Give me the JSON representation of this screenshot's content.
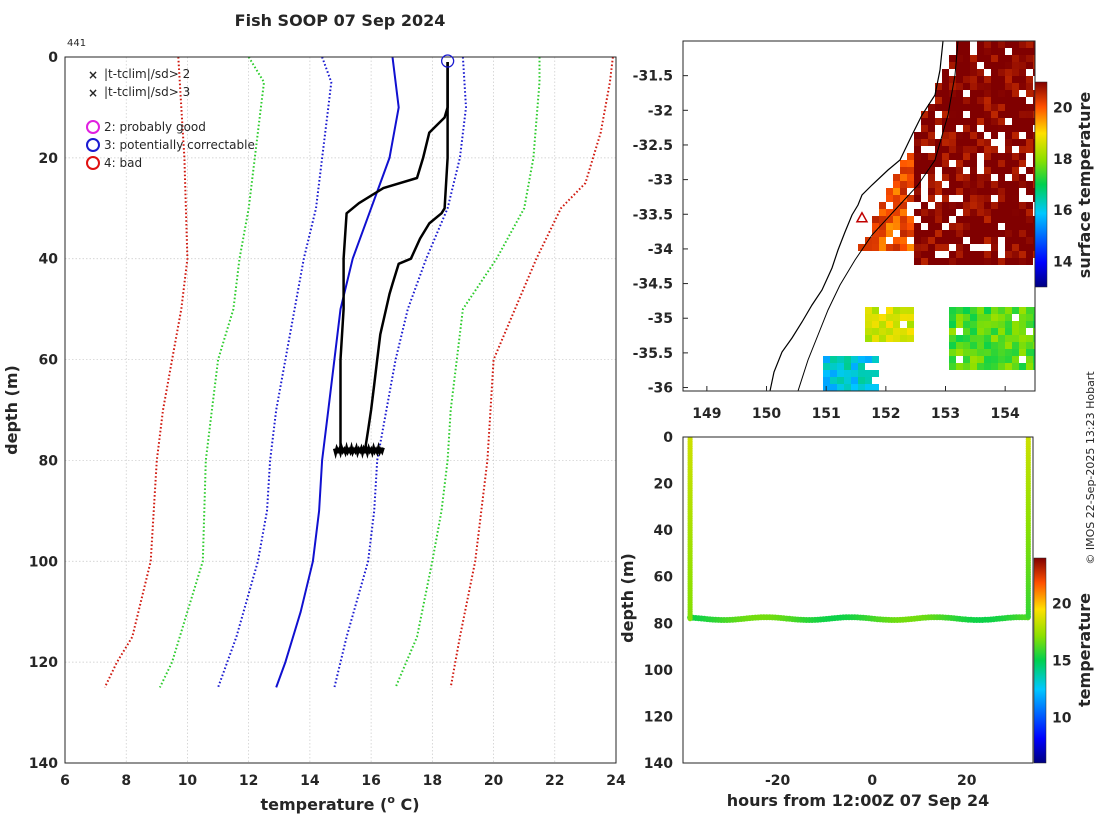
{
  "figure": {
    "title": "Fish SOOP 07 Sep 2024",
    "profile_id": "441",
    "credit": "© IMOS 22-Sep-2025 13:23 Hobart"
  },
  "legend": {
    "flags": [
      {
        "marker": "x",
        "color": "#2ecc2e",
        "label": "|t-tclim|/sd> 2"
      },
      {
        "marker": "x",
        "color": "#e01010",
        "label": "|t-tclim|/sd> 3"
      }
    ],
    "qc": [
      {
        "marker": "o",
        "color": "#e020e0",
        "label": "2: probably good"
      },
      {
        "marker": "o",
        "color": "#1a1ad0",
        "label": "3: potentially correctable"
      },
      {
        "marker": "o",
        "color": "#e01010",
        "label": "4: bad"
      }
    ]
  },
  "colors": {
    "observed": "#000000",
    "clim_mean": "#1010d0",
    "sd1": "#1a1ad0",
    "sd2": "#2ecc2e",
    "sd3": "#d01a10",
    "sst_hot": "#a00000",
    "map_coast": "#000000"
  },
  "chart_data": [
    {
      "type": "line",
      "name": "temperature-profile",
      "title": "Fish SOOP 07 Sep 2024",
      "xlabel": "temperature (",
      "xlabel_sup": "o",
      "xlabel_tail": " C)",
      "ylabel": "depth (m)",
      "xlim": [
        6,
        24
      ],
      "ylim": [
        0,
        140
      ],
      "y_reversed": true,
      "xticks": [
        6,
        8,
        10,
        12,
        14,
        16,
        18,
        20,
        22,
        24
      ],
      "yticks": [
        0,
        20,
        40,
        60,
        80,
        100,
        120,
        140
      ],
      "grid": true,
      "series": [
        {
          "name": "minus3sd",
          "style": "dotted",
          "color": "#d01a10",
          "x": [
            9.7,
            9.8,
            9.9,
            10.0,
            9.8,
            9.5,
            9.2,
            9.0,
            8.8,
            8.2,
            7.7,
            7.3
          ],
          "y": [
            0,
            10,
            20,
            40,
            50,
            60,
            70,
            80,
            100,
            115,
            120,
            125
          ]
        },
        {
          "name": "minus2sd",
          "style": "dotted",
          "color": "#2ecc2e",
          "x": [
            12.0,
            12.5,
            12.4,
            12.0,
            11.7,
            11.5,
            11.0,
            10.8,
            10.6,
            10.5,
            10.0,
            9.5,
            9.1
          ],
          "y": [
            0,
            5,
            10,
            30,
            40,
            50,
            60,
            70,
            80,
            100,
            110,
            120,
            125
          ]
        },
        {
          "name": "minus1sd",
          "style": "dotted",
          "color": "#1a1ad0",
          "x": [
            14.4,
            14.7,
            14.6,
            14.2,
            13.8,
            13.5,
            13.2,
            12.9,
            12.7,
            12.6,
            12.3,
            11.6,
            11.0
          ],
          "y": [
            0,
            5,
            10,
            30,
            40,
            50,
            60,
            70,
            80,
            90,
            100,
            115,
            125
          ]
        },
        {
          "name": "climatology",
          "style": "solid",
          "color": "#1010d0",
          "x": [
            16.7,
            16.9,
            16.6,
            16.0,
            15.4,
            15.0,
            14.8,
            14.6,
            14.4,
            14.3,
            14.2,
            14.1,
            13.7,
            13.2,
            12.9
          ],
          "y": [
            0,
            10,
            20,
            30,
            40,
            50,
            60,
            70,
            80,
            90,
            95,
            100,
            110,
            120,
            125
          ]
        },
        {
          "name": "plus1sd",
          "style": "dotted",
          "color": "#1a1ad0",
          "x": [
            19.0,
            19.1,
            18.9,
            18.5,
            17.8,
            17.2,
            16.8,
            16.5,
            16.2,
            16.1,
            15.9,
            15.2,
            14.8
          ],
          "y": [
            0,
            10,
            20,
            30,
            40,
            50,
            60,
            70,
            80,
            90,
            100,
            115,
            125
          ]
        },
        {
          "name": "plus2sd",
          "style": "dotted",
          "color": "#2ecc2e",
          "x": [
            21.5,
            21.5,
            21.3,
            21.0,
            20.1,
            19.0,
            18.8,
            18.6,
            18.5,
            18.3,
            18.0,
            17.5,
            16.8
          ],
          "y": [
            0,
            5,
            20,
            30,
            40,
            50,
            60,
            70,
            80,
            90,
            100,
            115,
            125
          ]
        },
        {
          "name": "plus3sd",
          "style": "dotted",
          "color": "#d01a10",
          "x": [
            23.9,
            23.8,
            23.5,
            23.0,
            22.2,
            21.4,
            20.7,
            20.0,
            19.9,
            19.8,
            19.4,
            18.9,
            18.6
          ],
          "y": [
            0,
            5,
            15,
            25,
            30,
            40,
            50,
            60,
            70,
            80,
            100,
            115,
            125
          ]
        },
        {
          "name": "observed-down",
          "style": "solid",
          "color": "#000000",
          "width": 2.5,
          "x": [
            18.5,
            18.5,
            18.5,
            18.4,
            17.9,
            17.7,
            17.5,
            16.4,
            15.6,
            15.2,
            15.1,
            15.1,
            15.0,
            15.0,
            15.0,
            15.0,
            15.0
          ],
          "y": [
            1,
            5,
            10,
            12,
            15,
            20,
            24,
            26,
            29,
            31,
            40,
            50,
            60,
            68,
            70,
            75,
            78
          ]
        },
        {
          "name": "observed-up",
          "style": "solid",
          "color": "#000000",
          "width": 2.5,
          "x": [
            18.5,
            18.5,
            18.5,
            18.4,
            18.3,
            17.9,
            17.6,
            17.3,
            16.9,
            16.7,
            16.6,
            16.3,
            16.2,
            16.1,
            16.0,
            15.9,
            15.8
          ],
          "y": [
            1,
            10,
            20,
            30,
            31,
            33,
            36,
            40,
            41,
            45,
            47,
            55,
            60,
            65,
            70,
            74,
            78
          ]
        }
      ],
      "bottom_noise": {
        "x_range": [
          14.8,
          16.4
        ],
        "depth": 78
      },
      "start_marker": {
        "x": 18.5,
        "y": 0.8,
        "shape": "circle",
        "color": "#1a1ad0"
      }
    },
    {
      "type": "heatmap",
      "name": "sst-map",
      "xlim": [
        148.6,
        154.5
      ],
      "ylim": [
        -36.05,
        -31.0
      ],
      "xticks": [
        149,
        150,
        151,
        152,
        153,
        154
      ],
      "yticks": [
        -31.5,
        -32,
        -32.5,
        -33,
        -33.5,
        -34,
        -34.5,
        -35,
        -35.5,
        -36
      ],
      "colorbar_label": "surface temperature",
      "clim": [
        13,
        21
      ],
      "colorbar_ticks": [
        14,
        16,
        18,
        20
      ],
      "track_marker": {
        "lon": 151.6,
        "lat": -33.55
      },
      "regions": [
        {
          "desc": "warm-core",
          "lon": [
            152.4,
            154.5
          ],
          "lat": [
            -34.2,
            -31.0
          ],
          "temp": 21
        },
        {
          "desc": "shelf-warm",
          "lon": [
            151.4,
            152.4
          ],
          "lat": [
            -34.0,
            -32.6
          ],
          "temp": 20
        },
        {
          "desc": "mid-patch",
          "lon": [
            151.6,
            152.4
          ],
          "lat": [
            -35.3,
            -34.8
          ],
          "temp": 18.5
        },
        {
          "desc": "south-east",
          "lon": [
            153.0,
            154.5
          ],
          "lat": [
            -35.7,
            -34.8
          ],
          "temp": 17.5
        },
        {
          "desc": "south-inner",
          "lon": [
            150.9,
            151.8
          ],
          "lat": [
            -36.0,
            -35.5
          ],
          "temp": 16
        }
      ]
    },
    {
      "type": "scatter",
      "name": "time-depth-section",
      "xlabel": "hours from 12:00Z 07 Sep 24",
      "ylabel": "depth (m)",
      "xlim": [
        -40,
        34
      ],
      "ylim": [
        0,
        140
      ],
      "y_reversed": true,
      "xticks": [
        -20,
        0,
        20
      ],
      "yticks": [
        0,
        20,
        40,
        60,
        80,
        100,
        120,
        140
      ],
      "colorbar_label": "temperature",
      "clim": [
        6,
        24
      ],
      "colorbar_ticks": [
        10,
        15,
        20
      ],
      "casts": [
        {
          "hour": -38.5,
          "depth_max": 78,
          "surface_temp": 18.5,
          "bottom_temp": 17.0
        },
        {
          "hour": 33.0,
          "depth_max": 77,
          "surface_temp": 18.5,
          "bottom_temp": 15.8
        }
      ],
      "bottom_trace": {
        "depth": 78,
        "amplitude": 0.6,
        "temp": 16.0
      }
    }
  ]
}
